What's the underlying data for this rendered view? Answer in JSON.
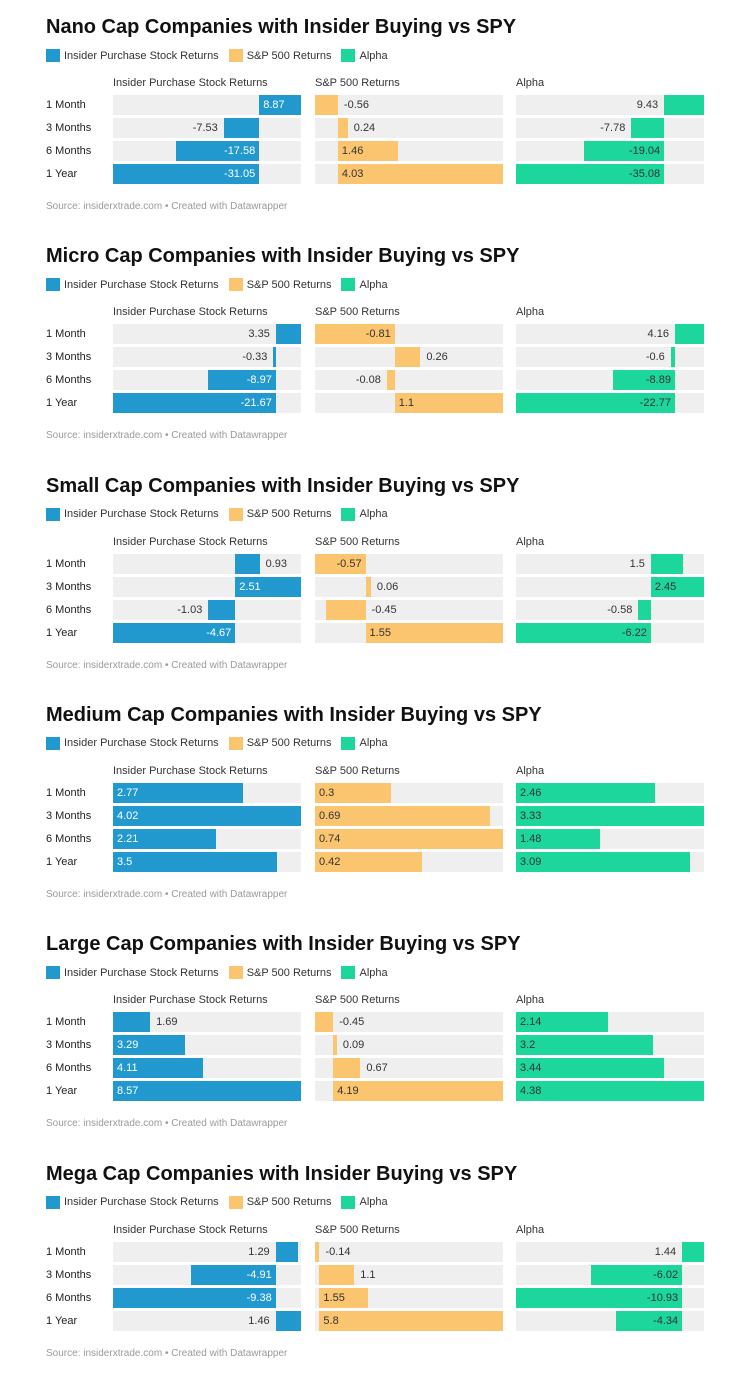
{
  "colors": {
    "insider": "#2199cf",
    "sp500": "#fbc46f",
    "alpha": "#1dd69b"
  },
  "chart_data": [
    {
      "type": "bar",
      "title": "Nano Cap Companies with Insider Buying vs SPY",
      "legend": [
        "Insider Purchase Stock Returns",
        "S&P 500 Returns",
        "Alpha"
      ],
      "columns": [
        "Insider Purchase Stock Returns",
        "S&P 500 Returns",
        "Alpha"
      ],
      "categories": [
        "1 Month",
        "3 Months",
        "6 Months",
        "1 Year"
      ],
      "series": [
        {
          "name": "Insider Purchase Stock Returns",
          "values": [
            8.87,
            -7.53,
            -17.58,
            -31.05
          ]
        },
        {
          "name": "S&P 500 Returns",
          "values": [
            -0.56,
            0.24,
            1.46,
            4.03
          ]
        },
        {
          "name": "Alpha",
          "values": [
            9.43,
            -7.78,
            -19.04,
            -35.08
          ]
        }
      ],
      "source": "Source: insiderxtrade.com • Created with Datawrapper"
    },
    {
      "type": "bar",
      "title": "Micro Cap Companies with Insider Buying vs SPY",
      "legend": [
        "Insider Purchase Stock Returns",
        "S&P 500 Returns",
        "Alpha"
      ],
      "columns": [
        "Insider Purchase Stock Returns",
        "S&P 500 Returns",
        "Alpha"
      ],
      "categories": [
        "1 Month",
        "3 Months",
        "6 Months",
        "1 Year"
      ],
      "series": [
        {
          "name": "Insider Purchase Stock Returns",
          "values": [
            3.35,
            -0.33,
            -8.97,
            -21.67
          ]
        },
        {
          "name": "S&P 500 Returns",
          "values": [
            -0.81,
            0.26,
            -0.08,
            1.1
          ]
        },
        {
          "name": "Alpha",
          "values": [
            4.16,
            -0.6,
            -8.89,
            -22.77
          ]
        }
      ],
      "source": "Source: insiderxtrade.com • Created with Datawrapper"
    },
    {
      "type": "bar",
      "title": "Small Cap Companies with Insider Buying vs SPY",
      "legend": [
        "Insider Purchase Stock Returns",
        "S&P 500 Returns",
        "Alpha"
      ],
      "columns": [
        "Insider Purchase Stock Returns",
        "S&P 500 Returns",
        "Alpha"
      ],
      "categories": [
        "1 Month",
        "3 Months",
        "6 Months",
        "1 Year"
      ],
      "series": [
        {
          "name": "Insider Purchase Stock Returns",
          "values": [
            0.93,
            2.51,
            -1.03,
            -4.67
          ]
        },
        {
          "name": "S&P 500 Returns",
          "values": [
            -0.57,
            0.06,
            -0.45,
            1.55
          ]
        },
        {
          "name": "Alpha",
          "values": [
            1.5,
            2.45,
            -0.58,
            -6.22
          ]
        }
      ],
      "source": "Source: insiderxtrade.com • Created with Datawrapper"
    },
    {
      "type": "bar",
      "title": "Medium Cap Companies with Insider Buying vs SPY",
      "legend": [
        "Insider Purchase Stock Returns",
        "S&P 500 Returns",
        "Alpha"
      ],
      "columns": [
        "Insider Purchase Stock Returns",
        "S&P 500 Returns",
        "Alpha"
      ],
      "categories": [
        "1 Month",
        "3 Months",
        "6 Months",
        "1 Year"
      ],
      "series": [
        {
          "name": "Insider Purchase Stock Returns",
          "values": [
            2.77,
            4.02,
            2.21,
            3.5
          ]
        },
        {
          "name": "S&P 500 Returns",
          "values": [
            0.3,
            0.69,
            0.74,
            0.42
          ]
        },
        {
          "name": "Alpha",
          "values": [
            2.46,
            3.33,
            1.48,
            3.09
          ]
        }
      ],
      "source": "Source: insiderxtrade.com • Created with Datawrapper"
    },
    {
      "type": "bar",
      "title": "Large Cap Companies with Insider Buying vs SPY",
      "legend": [
        "Insider Purchase Stock Returns",
        "S&P 500 Returns",
        "Alpha"
      ],
      "columns": [
        "Insider Purchase Stock Returns",
        "S&P 500 Returns",
        "Alpha"
      ],
      "categories": [
        "1 Month",
        "3 Months",
        "6 Months",
        "1 Year"
      ],
      "series": [
        {
          "name": "Insider Purchase Stock Returns",
          "values": [
            1.69,
            3.29,
            4.11,
            8.57
          ]
        },
        {
          "name": "S&P 500 Returns",
          "values": [
            -0.45,
            0.09,
            0.67,
            4.19
          ]
        },
        {
          "name": "Alpha",
          "values": [
            2.14,
            3.2,
            3.44,
            4.38
          ]
        }
      ],
      "source": "Source: insiderxtrade.com • Created with Datawrapper"
    },
    {
      "type": "bar",
      "title": "Mega Cap Companies with Insider Buying vs SPY",
      "legend": [
        "Insider Purchase Stock Returns",
        "S&P 500 Returns",
        "Alpha"
      ],
      "columns": [
        "Insider Purchase Stock Returns",
        "S&P 500 Returns",
        "Alpha"
      ],
      "categories": [
        "1 Month",
        "3 Months",
        "6 Months",
        "1 Year"
      ],
      "series": [
        {
          "name": "Insider Purchase Stock Returns",
          "values": [
            1.29,
            -4.91,
            -9.38,
            1.46
          ]
        },
        {
          "name": "S&P 500 Returns",
          "values": [
            -0.14,
            1.1,
            1.55,
            5.8
          ]
        },
        {
          "name": "Alpha",
          "values": [
            1.44,
            -6.02,
            -10.93,
            -4.34
          ]
        }
      ],
      "source": "Source: insiderxtrade.com • Created with Datawrapper"
    }
  ]
}
